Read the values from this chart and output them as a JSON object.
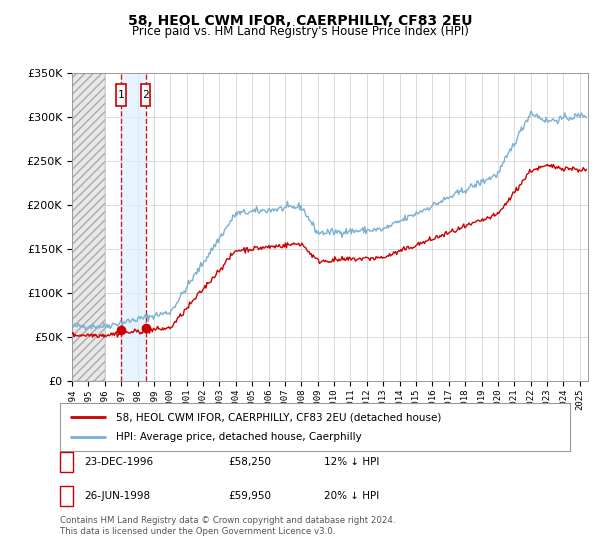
{
  "title": "58, HEOL CWM IFOR, CAERPHILLY, CF83 2EU",
  "subtitle": "Price paid vs. HM Land Registry's House Price Index (HPI)",
  "legend_line1": "58, HEOL CWM IFOR, CAERPHILLY, CF83 2EU (detached house)",
  "legend_line2": "HPI: Average price, detached house, Caerphilly",
  "sale1_label": "1",
  "sale1_date": "23-DEC-1996",
  "sale1_price": 58250,
  "sale1_price_str": "£58,250",
  "sale1_hpi": "12% ↓ HPI",
  "sale1_year": 1996.97,
  "sale2_label": "2",
  "sale2_date": "26-JUN-1998",
  "sale2_price": 59950,
  "sale2_price_str": "£59,950",
  "sale2_hpi": "20% ↓ HPI",
  "sale2_year": 1998.49,
  "xmin": 1994.0,
  "xmax": 2025.5,
  "ymin": 0,
  "ymax": 350000,
  "hatch_end": 1996.0,
  "red_color": "#cc0000",
  "blue_color": "#7ab0d4",
  "footnote1": "Contains HM Land Registry data © Crown copyright and database right 2024.",
  "footnote2": "This data is licensed under the Open Government Licence v3.0."
}
